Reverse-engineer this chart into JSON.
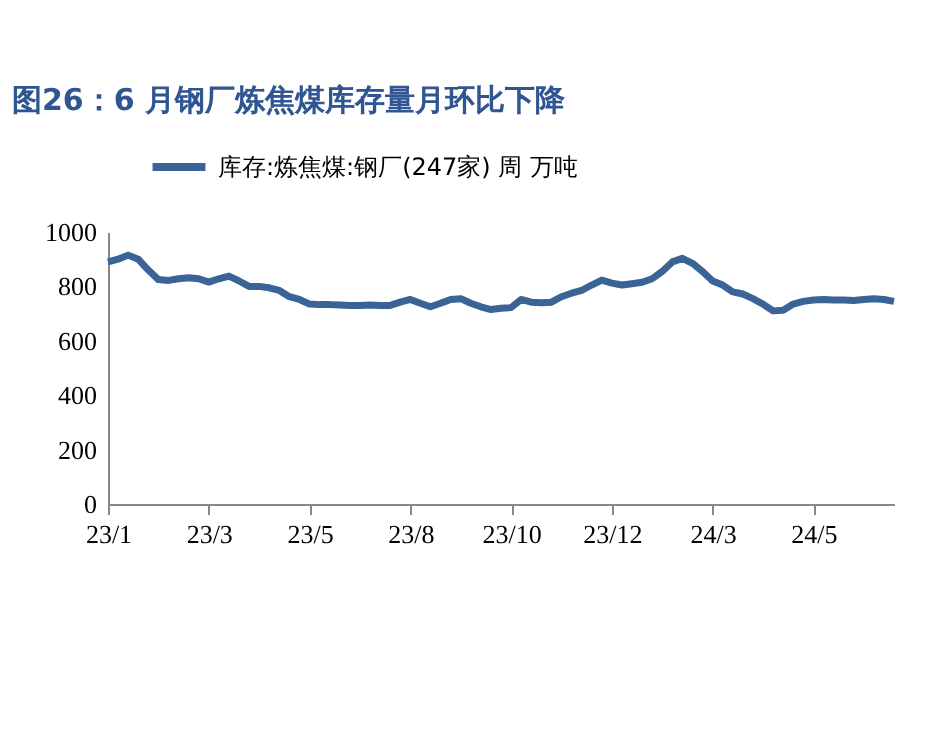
{
  "chart_data": {
    "type": "line",
    "title": "图26：6 月钢厂炼焦煤库存量月环比下降",
    "categories": [
      "23/1",
      null,
      null,
      null,
      null,
      null,
      null,
      null,
      null,
      null,
      "23/3",
      null,
      null,
      null,
      null,
      null,
      null,
      null,
      null,
      null,
      "23/5",
      null,
      null,
      null,
      null,
      null,
      null,
      null,
      null,
      null,
      "23/8",
      null,
      null,
      null,
      null,
      null,
      null,
      null,
      null,
      null,
      "23/10",
      null,
      null,
      null,
      null,
      null,
      null,
      null,
      null,
      null,
      "23/12",
      null,
      null,
      null,
      null,
      null,
      null,
      null,
      null,
      null,
      "24/3",
      null,
      null,
      null,
      null,
      null,
      null,
      null,
      null,
      null,
      "24/5",
      null,
      null,
      null,
      null,
      null,
      null,
      null,
      null
    ],
    "series": [
      {
        "name": "库存:炼焦煤:钢厂(247家) 周 万吨",
        "color": "#3b6496",
        "values": [
          890,
          900,
          915,
          900,
          860,
          825,
          822,
          828,
          832,
          828,
          816,
          828,
          838,
          820,
          800,
          800,
          795,
          785,
          762,
          752,
          735,
          733,
          733,
          732,
          730,
          730,
          732,
          730,
          730,
          742,
          752,
          738,
          725,
          738,
          752,
          755,
          738,
          725,
          715,
          720,
          722,
          752,
          742,
          740,
          742,
          762,
          775,
          785,
          805,
          823,
          812,
          805,
          810,
          815,
          828,
          855,
          890,
          903,
          885,
          855,
          820,
          805,
          780,
          772,
          755,
          735,
          710,
          712,
          735,
          745,
          750,
          752,
          750,
          750,
          748,
          752,
          755,
          752,
          745
        ]
      }
    ],
    "ylim": [
      0,
      1000
    ],
    "yticks": [
      0,
      200,
      400,
      600,
      800,
      1000
    ],
    "legend": "top",
    "grid": false
  }
}
